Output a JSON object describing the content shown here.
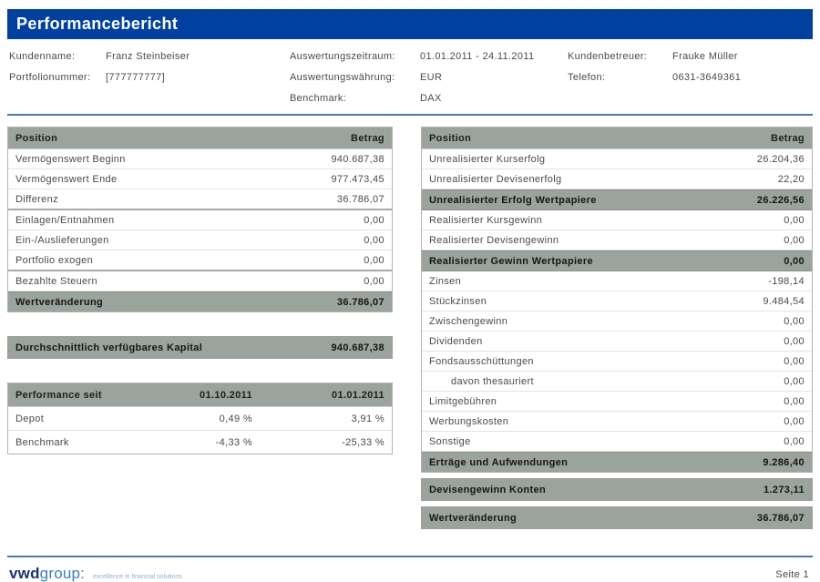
{
  "title": "Performancebericht",
  "info": {
    "kundenname_label": "Kundenname:",
    "kundenname_value": "Franz Steinbeiser",
    "portfolionummer_label": "Portfolionummer:",
    "portfolionummer_value": "[777777777]",
    "auswertungszeitraum_label": "Auswertungszeitraum:",
    "auswertungszeitraum_value": "01.01.2011 - 24.11.2011",
    "auswertungswaehrung_label": "Auswertungswährung:",
    "auswertungswaehrung_value": "EUR",
    "benchmark_label": "Benchmark:",
    "benchmark_value": "DAX",
    "kundenbetreuer_label": "Kundenbetreuer:",
    "kundenbetreuer_value": "Frauke Müller",
    "telefon_label": "Telefon:",
    "telefon_value": "0631-3649361"
  },
  "left_table": {
    "header": {
      "position": "Position",
      "betrag": "Betrag"
    },
    "rows": [
      {
        "label": "Vermögenswert Beginn",
        "value": "940.687,38"
      },
      {
        "label": "Vermögenswert Ende",
        "value": "977.473,45"
      },
      {
        "label": "Differenz",
        "value": "36.786,07"
      },
      {
        "label": "Einlagen/Entnahmen",
        "value": "0,00"
      },
      {
        "label": "Ein-/Auslieferungen",
        "value": "0,00"
      },
      {
        "label": "Portfolio exogen",
        "value": "0,00"
      },
      {
        "label": "Bezahlte Steuern",
        "value": "0,00"
      },
      {
        "label": "Wertveränderung",
        "value": "36.786,07"
      }
    ]
  },
  "avg_capital": {
    "label": "Durchschnittlich verfügbares Kapital",
    "value": "940.687,38"
  },
  "performance_table": {
    "header": {
      "col1": "Performance seit",
      "col2": "01.10.2011",
      "col3": "01.01.2011"
    },
    "rows": [
      {
        "label": "Depot",
        "col2": "0,49 %",
        "col3": "3,91 %"
      },
      {
        "label": "Benchmark",
        "col2": "-4,33 %",
        "col3": "-25,33 %"
      }
    ]
  },
  "right_table": {
    "header": {
      "position": "Position",
      "betrag": "Betrag"
    },
    "rows": [
      {
        "label": "Unrealisierter Kurserfolg",
        "value": "26.204,36"
      },
      {
        "label": "Unrealisierter Devisenerfolg",
        "value": "22,20"
      },
      {
        "label": "Unrealisierter Erfolg Wertpapiere",
        "value": "26.226,56"
      },
      {
        "label": "Realisierter Kursgewinn",
        "value": "0,00"
      },
      {
        "label": "Realisierter Devisengewinn",
        "value": "0,00"
      },
      {
        "label": "Realisierter Gewinn Wertpapiere",
        "value": "0,00"
      },
      {
        "label": "Zinsen",
        "value": "-198,14"
      },
      {
        "label": "Stückzinsen",
        "value": "9.484,54"
      },
      {
        "label": "Zwischengewinn",
        "value": "0,00"
      },
      {
        "label": "Dividenden",
        "value": "0,00"
      },
      {
        "label": "Fondsausschüttungen",
        "value": "0,00"
      },
      {
        "label": "davon thesauriert",
        "value": "0,00"
      },
      {
        "label": "Limitgebühren",
        "value": "0,00"
      },
      {
        "label": "Werbungskosten",
        "value": "0,00"
      },
      {
        "label": "Sonstige",
        "value": "0,00"
      },
      {
        "label": "Erträge und Aufwendungen",
        "value": "9.286,40"
      }
    ],
    "bars": [
      {
        "label": "Devisengewinn Konten",
        "value": "1.273,11"
      },
      {
        "label": "Wertveränderung",
        "value": "36.786,07"
      }
    ]
  },
  "footer": {
    "logo_vwd": "vwd",
    "logo_group": "group:",
    "logo_tagline": "excellence in financial solutions",
    "page": "Seite 1"
  },
  "colors": {
    "title_bar_blue": "#0041a0",
    "table_header_gray": "#9aa39c",
    "rule_blue": "#4b79ab",
    "logo_navy": "#17366e",
    "logo_blue": "#3e7dc0"
  }
}
